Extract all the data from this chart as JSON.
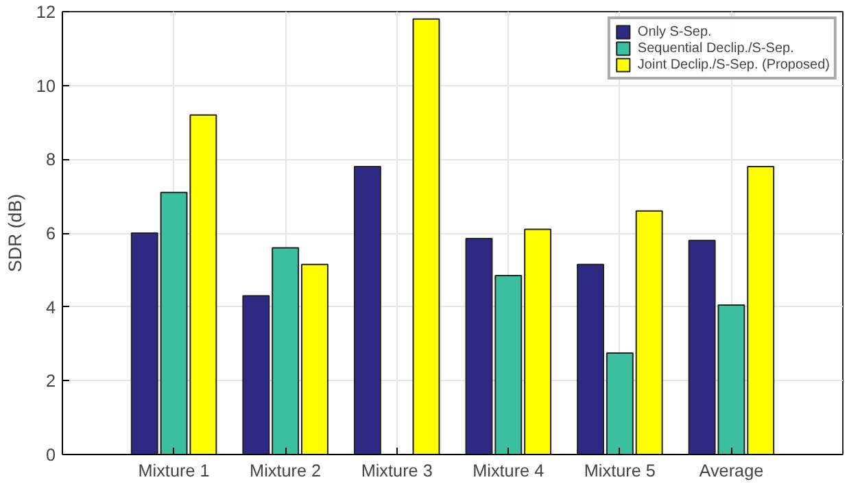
{
  "chart_data": {
    "type": "bar",
    "ylabel": "SDR (dB)",
    "categories": [
      "Mixture 1",
      "Mixture 2",
      "Mixture 3",
      "Mixture 4",
      "Mixture 5",
      "Average"
    ],
    "series": [
      {
        "name": "Only S-Sep.",
        "color": "#2e2a84",
        "values": [
          6.0,
          4.3,
          7.8,
          5.85,
          5.15,
          5.8
        ]
      },
      {
        "name": "Sequential Declip./S-Sep.",
        "color": "#3cbf9f",
        "values": [
          7.1,
          5.6,
          null,
          4.85,
          2.75,
          4.05
        ]
      },
      {
        "name": "Joint Declip./S-Sep. (Proposed)",
        "color": "#ffff00",
        "values": [
          9.2,
          5.15,
          11.8,
          6.1,
          6.6,
          7.8
        ]
      }
    ],
    "ylim": [
      0,
      12
    ],
    "yticks": [
      0,
      2,
      4,
      6,
      8,
      10,
      12
    ],
    "grid": true,
    "legend": "top right"
  }
}
